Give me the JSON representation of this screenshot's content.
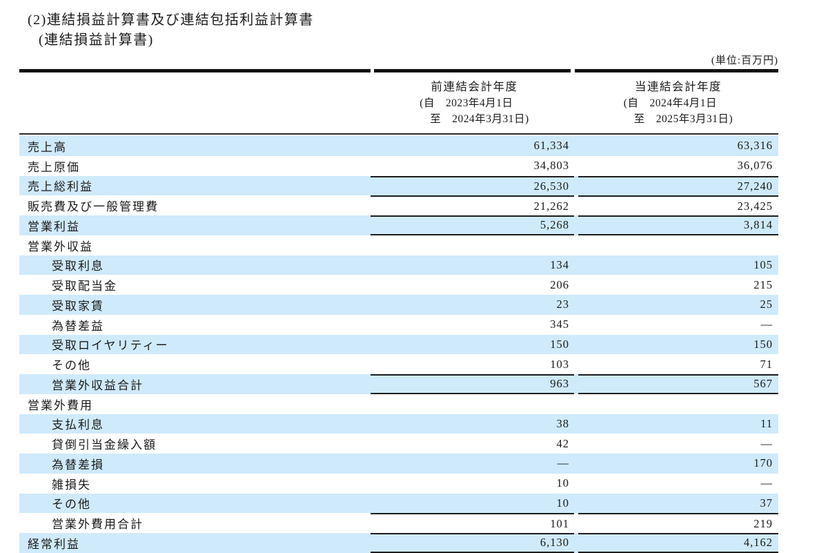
{
  "title": "(2)連結損益計算書及び連結包括利益計算書",
  "subtitle": "(連結損益計算書)",
  "unit_label": "(単位:百万円)",
  "colors": {
    "stripe": "#cfeafb",
    "rule_line": "#1c1c1c",
    "header_bar": "#111111"
  },
  "columns": [
    {
      "name": "前連結会計年度",
      "period_from": "(自　2023年4月1日",
      "period_to": "至　2024年3月31日)"
    },
    {
      "name": "当連結会計年度",
      "period_from": "(自　2024年4月1日",
      "period_to": "至　2025年3月31日)"
    }
  ],
  "rows": [
    {
      "label": "売上高",
      "indent": 0,
      "shaded": true,
      "line_top": false,
      "line_bottom": false,
      "prev": "61,334",
      "curr": "63,316"
    },
    {
      "label": "売上原価",
      "indent": 0,
      "shaded": false,
      "line_top": false,
      "line_bottom": false,
      "prev": "34,803",
      "curr": "36,076"
    },
    {
      "label": "売上総利益",
      "indent": 0,
      "shaded": true,
      "line_top": true,
      "line_bottom": false,
      "prev": "26,530",
      "curr": "27,240"
    },
    {
      "label": "販売費及び一般管理費",
      "indent": 0,
      "shaded": false,
      "line_top": true,
      "line_bottom": false,
      "prev": "21,262",
      "curr": "23,425"
    },
    {
      "label": "営業利益",
      "indent": 0,
      "shaded": true,
      "line_top": true,
      "line_bottom": true,
      "prev": "5,268",
      "curr": "3,814"
    },
    {
      "label": "営業外収益",
      "indent": 0,
      "shaded": false,
      "line_top": false,
      "line_bottom": false,
      "prev": "",
      "curr": ""
    },
    {
      "label": "受取利息",
      "indent": 1,
      "shaded": true,
      "line_top": false,
      "line_bottom": false,
      "prev": "134",
      "curr": "105"
    },
    {
      "label": "受取配当金",
      "indent": 1,
      "shaded": false,
      "line_top": false,
      "line_bottom": false,
      "prev": "206",
      "curr": "215"
    },
    {
      "label": "受取家賃",
      "indent": 1,
      "shaded": true,
      "line_top": false,
      "line_bottom": false,
      "prev": "23",
      "curr": "25"
    },
    {
      "label": "為替差益",
      "indent": 1,
      "shaded": false,
      "line_top": false,
      "line_bottom": false,
      "prev": "345",
      "curr": "―"
    },
    {
      "label": "受取ロイヤリティー",
      "indent": 1,
      "shaded": true,
      "line_top": false,
      "line_bottom": false,
      "prev": "150",
      "curr": "150"
    },
    {
      "label": "その他",
      "indent": 1,
      "shaded": false,
      "line_top": false,
      "line_bottom": false,
      "prev": "103",
      "curr": "71"
    },
    {
      "label": "営業外収益合計",
      "indent": 1,
      "shaded": true,
      "line_top": true,
      "line_bottom": true,
      "prev": "963",
      "curr": "567"
    },
    {
      "label": "営業外費用",
      "indent": 0,
      "shaded": false,
      "line_top": false,
      "line_bottom": false,
      "prev": "",
      "curr": ""
    },
    {
      "label": "支払利息",
      "indent": 1,
      "shaded": true,
      "line_top": false,
      "line_bottom": false,
      "prev": "38",
      "curr": "11"
    },
    {
      "label": "貸倒引当金繰入額",
      "indent": 1,
      "shaded": false,
      "line_top": false,
      "line_bottom": false,
      "prev": "42",
      "curr": "―"
    },
    {
      "label": "為替差損",
      "indent": 1,
      "shaded": true,
      "line_top": false,
      "line_bottom": false,
      "prev": "―",
      "curr": "170"
    },
    {
      "label": "雑損失",
      "indent": 1,
      "shaded": false,
      "line_top": false,
      "line_bottom": false,
      "prev": "10",
      "curr": "―"
    },
    {
      "label": "その他",
      "indent": 1,
      "shaded": true,
      "line_top": false,
      "line_bottom": false,
      "prev": "10",
      "curr": "37"
    },
    {
      "label": "営業外費用合計",
      "indent": 1,
      "shaded": false,
      "line_top": true,
      "line_bottom": false,
      "prev": "101",
      "curr": "219"
    },
    {
      "label": "経常利益",
      "indent": 0,
      "shaded": true,
      "line_top": true,
      "line_bottom": true,
      "prev": "6,130",
      "curr": "4,162"
    }
  ]
}
